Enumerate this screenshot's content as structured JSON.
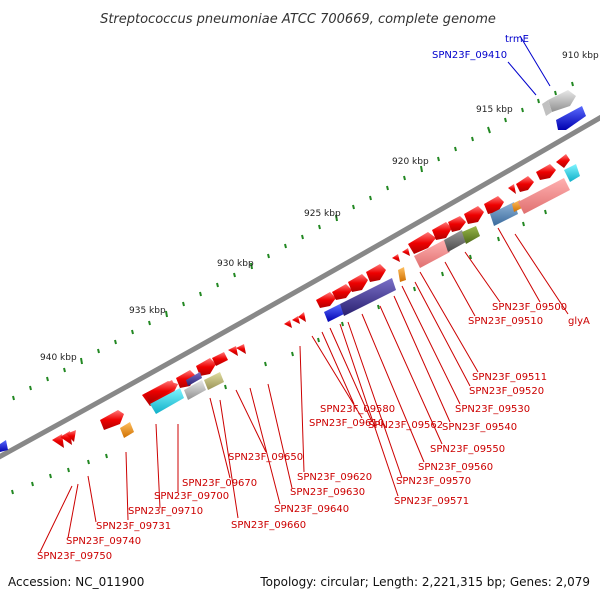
{
  "title": "Streptococcus pneumoniae ATCC 700669, complete genome",
  "accession": "Accession: NC_011900",
  "topology": "Topology: circular; Length: 2,221,315 bp; Genes: 2,079",
  "scale_labels": [
    "910 kbp",
    "915 kbp",
    "920 kbp",
    "925 kbp",
    "930 kbp",
    "935 kbp",
    "940 kbp"
  ],
  "gene_labels": [
    {
      "text": "trmE",
      "color": "#0000cc"
    },
    {
      "text": "SPN23F_09410",
      "color": "#0000cc"
    },
    {
      "text": "SPN23F_09500",
      "color": "#cc0000"
    },
    {
      "text": "SPN23F_09510",
      "color": "#cc0000"
    },
    {
      "text": "glyA",
      "color": "#cc0000"
    },
    {
      "text": "SPN23F_09511",
      "color": "#cc0000"
    },
    {
      "text": "SPN23F_09520",
      "color": "#cc0000"
    },
    {
      "text": "SPN23F_09530",
      "color": "#cc0000"
    },
    {
      "text": "SPN23F_09540",
      "color": "#cc0000"
    },
    {
      "text": "SPN23F_09550",
      "color": "#cc0000"
    },
    {
      "text": "SPN23F_09560",
      "color": "#cc0000"
    },
    {
      "text": "SPN23F_09570",
      "color": "#cc0000"
    },
    {
      "text": "SPN23F_09571",
      "color": "#cc0000"
    },
    {
      "text": "SPN23F_09562",
      "color": "#cc0000"
    },
    {
      "text": "SPN23F_09580",
      "color": "#cc0000"
    },
    {
      "text": "SPN23F_09610",
      "color": "#cc0000"
    },
    {
      "text": "SPN23F_09620",
      "color": "#cc0000"
    },
    {
      "text": "SPN23F_09630",
      "color": "#cc0000"
    },
    {
      "text": "SPN23F_09640",
      "color": "#cc0000"
    },
    {
      "text": "SPN23F_09650",
      "color": "#cc0000"
    },
    {
      "text": "SPN23F_09660",
      "color": "#cc0000"
    },
    {
      "text": "SPN23F_09670",
      "color": "#cc0000"
    },
    {
      "text": "SPN23F_09700",
      "color": "#cc0000"
    },
    {
      "text": "SPN23F_09710",
      "color": "#cc0000"
    },
    {
      "text": "SPN23F_09731",
      "color": "#cc0000"
    },
    {
      "text": "SPN23F_09740",
      "color": "#cc0000"
    },
    {
      "text": "SPN23F_09750",
      "color": "#cc0000"
    }
  ]
}
